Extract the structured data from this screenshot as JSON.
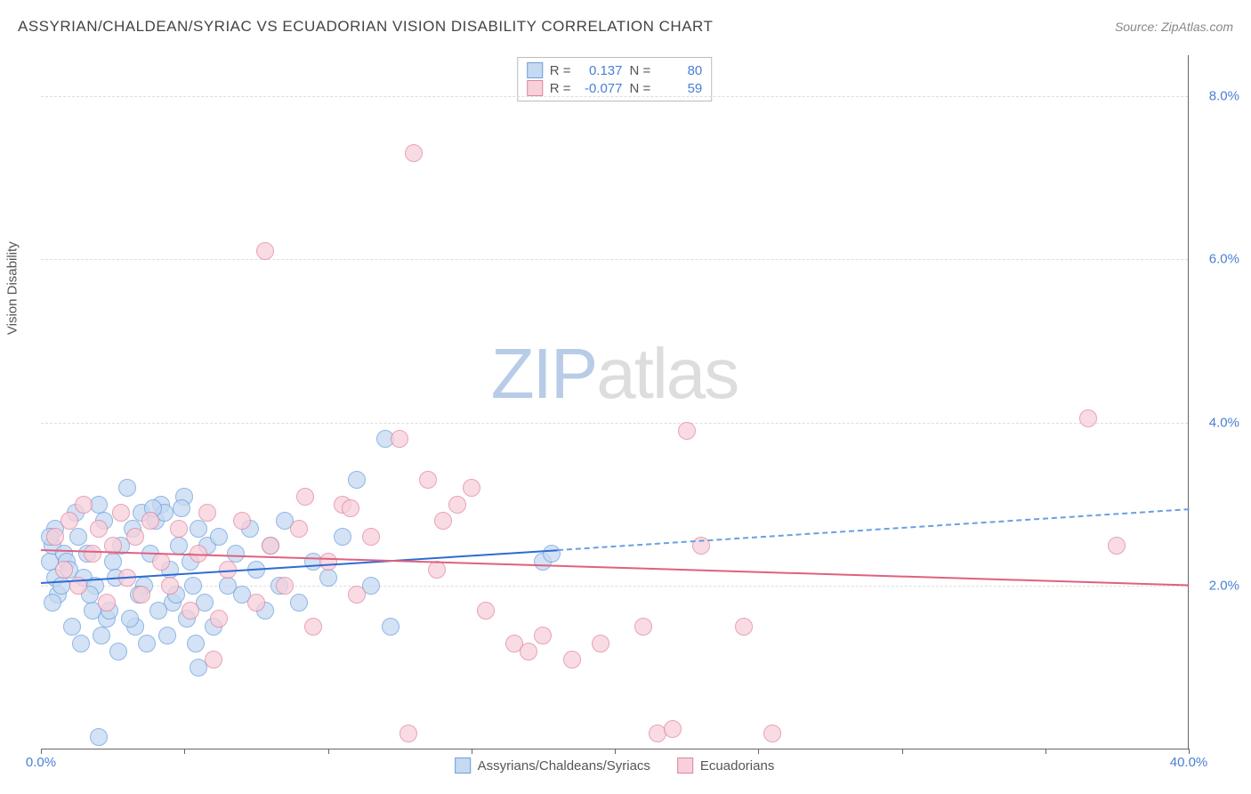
{
  "title": "ASSYRIAN/CHALDEAN/SYRIAC VS ECUADORIAN VISION DISABILITY CORRELATION CHART",
  "source_label": "Source:",
  "source_value": "ZipAtlas.com",
  "watermark": {
    "part1": "ZIP",
    "part2": "atlas"
  },
  "y_axis_label": "Vision Disability",
  "chart": {
    "type": "scatter",
    "xlim": [
      0,
      40
    ],
    "ylim": [
      0,
      8.5
    ],
    "x_ticks": [
      0,
      5,
      10,
      15,
      20,
      25,
      30,
      35,
      40
    ],
    "x_tick_labels": [
      "0.0%",
      "",
      "",
      "",
      "",
      "",
      "",
      "",
      "40.0%"
    ],
    "y_ticks": [
      2,
      4,
      6,
      8
    ],
    "y_tick_labels": [
      "2.0%",
      "4.0%",
      "6.0%",
      "8.0%"
    ],
    "background_color": "#ffffff",
    "grid_color": "#dddddd",
    "axis_color": "#666666",
    "marker_radius": 10,
    "marker_stroke_width": 1.5,
    "series": [
      {
        "id": "assyrians",
        "label": "Assyrians/Chaldeans/Syriacs",
        "fill": "#c5d9f1",
        "stroke": "#6b9fe0",
        "r_label": "R =",
        "r_value": "0.137",
        "n_label": "N =",
        "n_value": "80",
        "trend": {
          "solid": {
            "x1": 0,
            "y1": 2.05,
            "x2": 18,
            "y2": 2.45,
            "color": "#2e6bd4",
            "width": 2.5
          },
          "dashed": {
            "x1": 18,
            "y1": 2.45,
            "x2": 40,
            "y2": 2.95,
            "color": "#6b9fe0",
            "width": 2,
            "dash": true
          }
        },
        "points": [
          [
            0.3,
            2.3
          ],
          [
            0.5,
            2.1
          ],
          [
            0.4,
            2.5
          ],
          [
            0.6,
            1.9
          ],
          [
            0.8,
            2.4
          ],
          [
            0.5,
            2.7
          ],
          [
            0.7,
            2.0
          ],
          [
            0.9,
            2.3
          ],
          [
            0.3,
            2.6
          ],
          [
            0.4,
            1.8
          ],
          [
            1.0,
            2.2
          ],
          [
            1.2,
            2.9
          ],
          [
            1.5,
            2.1
          ],
          [
            1.3,
            2.6
          ],
          [
            1.8,
            1.7
          ],
          [
            1.6,
            2.4
          ],
          [
            2.0,
            3.0
          ],
          [
            2.2,
            2.8
          ],
          [
            1.9,
            2.0
          ],
          [
            2.5,
            2.3
          ],
          [
            2.3,
            1.6
          ],
          [
            2.8,
            2.5
          ],
          [
            3.0,
            3.2
          ],
          [
            2.6,
            2.1
          ],
          [
            3.2,
            2.7
          ],
          [
            3.5,
            2.9
          ],
          [
            3.3,
            1.5
          ],
          [
            3.8,
            2.4
          ],
          [
            4.0,
            2.8
          ],
          [
            3.6,
            2.0
          ],
          [
            4.2,
            3.0
          ],
          [
            4.5,
            2.2
          ],
          [
            4.3,
            2.9
          ],
          [
            4.8,
            2.5
          ],
          [
            5.0,
            3.1
          ],
          [
            4.6,
            1.8
          ],
          [
            5.2,
            2.3
          ],
          [
            5.5,
            2.7
          ],
          [
            5.3,
            2.0
          ],
          [
            5.8,
            2.5
          ],
          [
            1.1,
            1.5
          ],
          [
            1.4,
            1.3
          ],
          [
            1.7,
            1.9
          ],
          [
            2.1,
            1.4
          ],
          [
            2.4,
            1.7
          ],
          [
            2.7,
            1.2
          ],
          [
            3.1,
            1.6
          ],
          [
            3.4,
            1.9
          ],
          [
            3.7,
            1.3
          ],
          [
            4.1,
            1.7
          ],
          [
            4.4,
            1.4
          ],
          [
            4.7,
            1.9
          ],
          [
            5.1,
            1.6
          ],
          [
            5.4,
            1.3
          ],
          [
            5.7,
            1.8
          ],
          [
            6.0,
            1.5
          ],
          [
            6.2,
            2.6
          ],
          [
            6.5,
            2.0
          ],
          [
            6.8,
            2.4
          ],
          [
            7.0,
            1.9
          ],
          [
            7.3,
            2.7
          ],
          [
            7.5,
            2.2
          ],
          [
            7.8,
            1.7
          ],
          [
            8.0,
            2.5
          ],
          [
            8.3,
            2.0
          ],
          [
            8.5,
            2.8
          ],
          [
            9.0,
            1.8
          ],
          [
            9.5,
            2.3
          ],
          [
            10.0,
            2.1
          ],
          [
            10.5,
            2.6
          ],
          [
            11.0,
            3.3
          ],
          [
            11.5,
            2.0
          ],
          [
            12.0,
            3.8
          ],
          [
            12.2,
            1.5
          ],
          [
            17.5,
            2.3
          ],
          [
            17.8,
            2.4
          ],
          [
            2.0,
            0.15
          ],
          [
            5.5,
            1.0
          ],
          [
            3.9,
            2.95
          ],
          [
            4.9,
            2.95
          ]
        ]
      },
      {
        "id": "ecuadorians",
        "label": "Ecuadorians",
        "fill": "#f8d0da",
        "stroke": "#e085a0",
        "r_label": "R =",
        "r_value": "-0.077",
        "n_label": "N =",
        "n_value": "59",
        "trend": {
          "solid": {
            "x1": 0,
            "y1": 2.45,
            "x2": 40,
            "y2": 2.02,
            "color": "#e0617f",
            "width": 2.5
          }
        },
        "points": [
          [
            0.5,
            2.6
          ],
          [
            0.8,
            2.2
          ],
          [
            1.0,
            2.8
          ],
          [
            1.3,
            2.0
          ],
          [
            1.5,
            3.0
          ],
          [
            1.8,
            2.4
          ],
          [
            2.0,
            2.7
          ],
          [
            2.3,
            1.8
          ],
          [
            2.5,
            2.5
          ],
          [
            2.8,
            2.9
          ],
          [
            3.0,
            2.1
          ],
          [
            3.3,
            2.6
          ],
          [
            3.5,
            1.9
          ],
          [
            3.8,
            2.8
          ],
          [
            4.2,
            2.3
          ],
          [
            4.5,
            2.0
          ],
          [
            4.8,
            2.7
          ],
          [
            5.2,
            1.7
          ],
          [
            5.5,
            2.4
          ],
          [
            5.8,
            2.9
          ],
          [
            6.2,
            1.6
          ],
          [
            6.5,
            2.2
          ],
          [
            7.0,
            2.8
          ],
          [
            7.5,
            1.8
          ],
          [
            8.0,
            2.5
          ],
          [
            8.5,
            2.0
          ],
          [
            9.0,
            2.7
          ],
          [
            7.8,
            6.1
          ],
          [
            9.5,
            1.5
          ],
          [
            10.0,
            2.3
          ],
          [
            10.5,
            3.0
          ],
          [
            11.0,
            1.9
          ],
          [
            11.5,
            2.6
          ],
          [
            12.5,
            3.8
          ],
          [
            13.0,
            7.3
          ],
          [
            13.5,
            3.3
          ],
          [
            14.0,
            2.8
          ],
          [
            14.5,
            3.0
          ],
          [
            15.0,
            3.2
          ],
          [
            15.5,
            1.7
          ],
          [
            12.8,
            0.2
          ],
          [
            16.5,
            1.3
          ],
          [
            17.0,
            1.2
          ],
          [
            17.5,
            1.4
          ],
          [
            18.5,
            1.1
          ],
          [
            19.5,
            1.3
          ],
          [
            21.0,
            1.5
          ],
          [
            22.5,
            3.9
          ],
          [
            23.0,
            2.5
          ],
          [
            21.5,
            0.2
          ],
          [
            22.0,
            0.25
          ],
          [
            24.5,
            1.5
          ],
          [
            25.5,
            0.2
          ],
          [
            36.5,
            4.05
          ],
          [
            37.5,
            2.5
          ],
          [
            6.0,
            1.1
          ],
          [
            9.2,
            3.1
          ],
          [
            10.8,
            2.95
          ],
          [
            13.8,
            2.2
          ]
        ]
      }
    ]
  },
  "legend_bottom": [
    {
      "label": "Assyrians/Chaldeans/Syriacs",
      "fill": "#c5d9f1",
      "stroke": "#6b9fe0"
    },
    {
      "label": "Ecuadorians",
      "fill": "#f8d0da",
      "stroke": "#e085a0"
    }
  ]
}
